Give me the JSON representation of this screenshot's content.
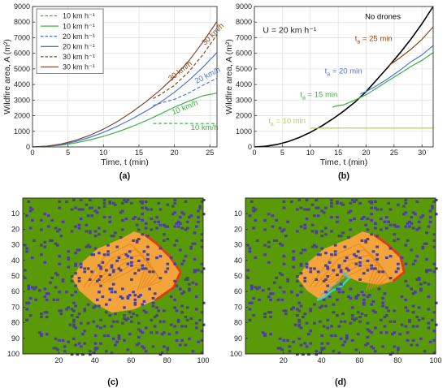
{
  "chart_data": [
    {
      "type": "line",
      "panel_label": "(a)",
      "xlabel": "Time, t (min)",
      "ylabel": "Wildfire area, A (m²)",
      "xlim": [
        0,
        26
      ],
      "ylim": [
        0,
        9000
      ],
      "xticks": [
        0,
        5,
        10,
        15,
        20,
        25
      ],
      "yticks": [
        0,
        1000,
        2000,
        3000,
        4000,
        5000,
        6000,
        7000,
        8000,
        9000
      ],
      "grid": true,
      "legend": {
        "placement": "top-left",
        "entries": [
          {
            "text": "10 km h⁻¹",
            "color": "#3cb043",
            "dashed": true
          },
          {
            "text": "10 km h⁻¹",
            "color": "#3cb043",
            "dashed": false
          },
          {
            "text": "20 km h⁻¹",
            "color": "#4a78d6",
            "dashed": true
          },
          {
            "text": "20 km h⁻¹",
            "color": "#4a78d6",
            "dashed": false
          },
          {
            "text": "30 km h⁻¹",
            "color": "#8b4513",
            "dashed": true
          },
          {
            "text": "30 km h⁻¹",
            "color": "#7a4a3a",
            "dashed": false
          }
        ]
      },
      "series": [
        {
          "color": "#3cb043",
          "dashed": false,
          "x": [
            0,
            2,
            4,
            6,
            8,
            10,
            12,
            14,
            16,
            18,
            20,
            22,
            24,
            26
          ],
          "y": [
            0,
            30,
            110,
            250,
            440,
            680,
            970,
            1300,
            1680,
            2100,
            2550,
            2930,
            3280,
            3450
          ]
        },
        {
          "color": "#3cb043",
          "dashed": true,
          "x": [
            17,
            18,
            20,
            22,
            24,
            26
          ],
          "y": [
            1500,
            1510,
            1510,
            1500,
            1500,
            1500
          ]
        },
        {
          "color": "#4a78d6",
          "dashed": false,
          "x": [
            0,
            2,
            4,
            6,
            8,
            10,
            12,
            14,
            16,
            18,
            20,
            22,
            24,
            26
          ],
          "y": [
            0,
            40,
            150,
            340,
            600,
            930,
            1330,
            1790,
            2300,
            2850,
            3500,
            4250,
            5100,
            6050
          ]
        },
        {
          "color": "#4a78d6",
          "dashed": true,
          "x": [
            17,
            18,
            20,
            22,
            24,
            26
          ],
          "y": [
            2650,
            2800,
            3050,
            3450,
            3950,
            4400
          ]
        },
        {
          "color": "#7a4a3a",
          "dashed": false,
          "x": [
            0,
            2,
            4,
            6,
            8,
            10,
            12,
            14,
            16,
            18,
            20,
            22,
            24,
            26
          ],
          "y": [
            0,
            45,
            180,
            410,
            730,
            1140,
            1640,
            2230,
            2900,
            3650,
            4500,
            5500,
            6700,
            8050
          ]
        },
        {
          "color": "#8b4513",
          "dashed": true,
          "x": [
            17,
            18,
            20,
            22,
            24,
            26
          ],
          "y": [
            3100,
            3350,
            3950,
            4800,
            5900,
            7200
          ]
        }
      ],
      "annotations": [
        {
          "text": "30 km/h",
          "color": "#8b4513",
          "x": 19.5,
          "y": 4200,
          "rotate": -38
        },
        {
          "text": "30 km/h",
          "color": "#8b4513",
          "x": 24.3,
          "y": 6500,
          "rotate": -45
        },
        {
          "text": "20 km/h",
          "color": "#4a78d6",
          "x": 23.1,
          "y": 4050,
          "rotate": -27
        },
        {
          "text": "10 km/h",
          "color": "#3cb043",
          "x": 19.8,
          "y": 2050,
          "rotate": -22
        },
        {
          "text": "10 km/h",
          "color": "#3cb043",
          "x": 22.3,
          "y": 1100,
          "rotate": 0
        }
      ]
    },
    {
      "type": "line",
      "panel_label": "(b)",
      "xlabel": "Time, t (min)",
      "ylabel": "Wildfire area, A (m²)",
      "xlim": [
        0,
        32
      ],
      "ylim": [
        0,
        9000
      ],
      "xticks": [
        0,
        5,
        10,
        15,
        20,
        25,
        30
      ],
      "yticks": [
        0,
        1000,
        2000,
        3000,
        4000,
        5000,
        6000,
        7000,
        8000,
        9000
      ],
      "grid": true,
      "wind_text": "U = 20 km h⁻¹",
      "series": [
        {
          "label": "No drones",
          "color": "#000000",
          "x": [
            0,
            2,
            4,
            6,
            8,
            10,
            12,
            14,
            16,
            18,
            20,
            22,
            24,
            26,
            28,
            30,
            32
          ],
          "y": [
            0,
            40,
            150,
            340,
            600,
            930,
            1330,
            1790,
            2300,
            2870,
            3550,
            4350,
            5150,
            6000,
            6900,
            7900,
            9000
          ]
        },
        {
          "color": "#8b4513",
          "x": [
            24,
            25,
            26,
            28,
            30,
            32
          ],
          "y": [
            5200,
            5450,
            5700,
            6250,
            6900,
            7700
          ]
        },
        {
          "color": "#4a78d6",
          "x": [
            19,
            20,
            22,
            24,
            26,
            28,
            30,
            32
          ],
          "y": [
            3400,
            3550,
            3950,
            4400,
            4900,
            5450,
            5900,
            6500
          ]
        },
        {
          "color": "#3cb043",
          "x": [
            14,
            15,
            16,
            18,
            20,
            22,
            24,
            26,
            28,
            30,
            32
          ],
          "y": [
            2550,
            2650,
            2700,
            3000,
            3350,
            3800,
            4250,
            4700,
            5150,
            5550,
            6050
          ]
        },
        {
          "color": "#b8d14a",
          "x": [
            10,
            12,
            14,
            16,
            20,
            24,
            28,
            32
          ],
          "y": [
            1200,
            1200,
            1200,
            1210,
            1200,
            1200,
            1200,
            1200
          ]
        }
      ],
      "annotations": [
        {
          "text": "No drones",
          "color": "#000000",
          "x": 19.8,
          "y": 8200
        },
        {
          "base": "t",
          "sub": "a",
          "rest": " = 25 min",
          "color": "#8b4513",
          "x": 18.0,
          "y": 6800
        },
        {
          "base": "t",
          "sub": "a",
          "rest": " = 20 min",
          "color": "#4a78d6",
          "x": 12.6,
          "y": 4700
        },
        {
          "base": "t",
          "sub": "a",
          "rest": " = 15 min",
          "color": "#3cb043",
          "x": 8.2,
          "y": 3200
        },
        {
          "base": "t",
          "sub": "a",
          "rest": " = 10 min",
          "color": "#b8d14a",
          "x": 2.5,
          "y": 1500
        }
      ]
    },
    {
      "type": "heatmap",
      "panel_label": "(c)",
      "xticks": [
        20,
        40,
        60,
        80,
        100
      ],
      "yticks": [
        10,
        20,
        30,
        40,
        50,
        60,
        70,
        80,
        90,
        100
      ],
      "colors": {
        "vegetation": "#5a9a08",
        "burnt": "#f3a43a",
        "front": "#d9401a",
        "obstacle": "#4a3ea0",
        "drone_trace": "#3dd0d8"
      },
      "drones": false
    },
    {
      "type": "heatmap",
      "panel_label": "(d)",
      "xticks": [
        20,
        40,
        60,
        80,
        100
      ],
      "yticks": [
        10,
        20,
        30,
        40,
        50,
        60,
        70,
        80,
        90,
        100
      ],
      "colors": {
        "vegetation": "#5a9a08",
        "burnt": "#f3a43a",
        "front": "#d9401a",
        "obstacle": "#4a3ea0",
        "drone_trace": "#3dd0d8"
      },
      "drones": true
    }
  ]
}
